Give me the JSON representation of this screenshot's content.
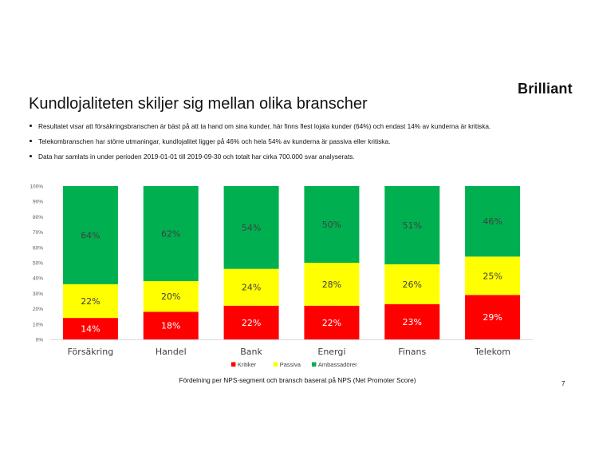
{
  "header": {
    "logo_text": "Brilliant",
    "title": "Kundlojaliteten skiljer sig mellan olika branscher"
  },
  "bullets": [
    "Resultatet visar att försäkringsbranschen är bäst på att ta hand om sina kunder, här finns flest lojala kunder (64%) och endast 14% av kunderna är kritiska.",
    "Telekombranschen har större utmaningar, kundlojalitet ligger på 46% och hela 54% av kunderna är passiva eller kritiska.",
    "Data har samlats in under perioden 2019-01-01 till 2019-09-30 och totalt har cirka 700.000 svar analyserats."
  ],
  "chart_data": {
    "type": "bar",
    "stacked": true,
    "categories": [
      "Försäkring",
      "Handel",
      "Bank",
      "Energi",
      "Finans",
      "Telekom"
    ],
    "series": [
      {
        "name": "Kritiker",
        "color": "#ff0000",
        "label_color": "#ffffff",
        "values": [
          14,
          18,
          22,
          22,
          23,
          29
        ]
      },
      {
        "name": "Passiva",
        "color": "#ffff00",
        "label_color": "#404040",
        "values": [
          22,
          20,
          24,
          28,
          26,
          25
        ]
      },
      {
        "name": "Ambassadörer",
        "color": "#00b050",
        "label_color": "#404040",
        "values": [
          64,
          62,
          54,
          50,
          51,
          46
        ]
      }
    ],
    "value_suffix": "%",
    "ylim": [
      0,
      100
    ],
    "yticks": [
      "0%",
      "10%",
      "20%",
      "30%",
      "40%",
      "50%",
      "60%",
      "70%",
      "80%",
      "90%",
      "100%"
    ],
    "grid": false,
    "legend": "bottom"
  },
  "footer": {
    "caption": "Fördelning per NPS-segment och bransch baserat på NPS (Net Promoter Score)",
    "page_number": "7"
  }
}
